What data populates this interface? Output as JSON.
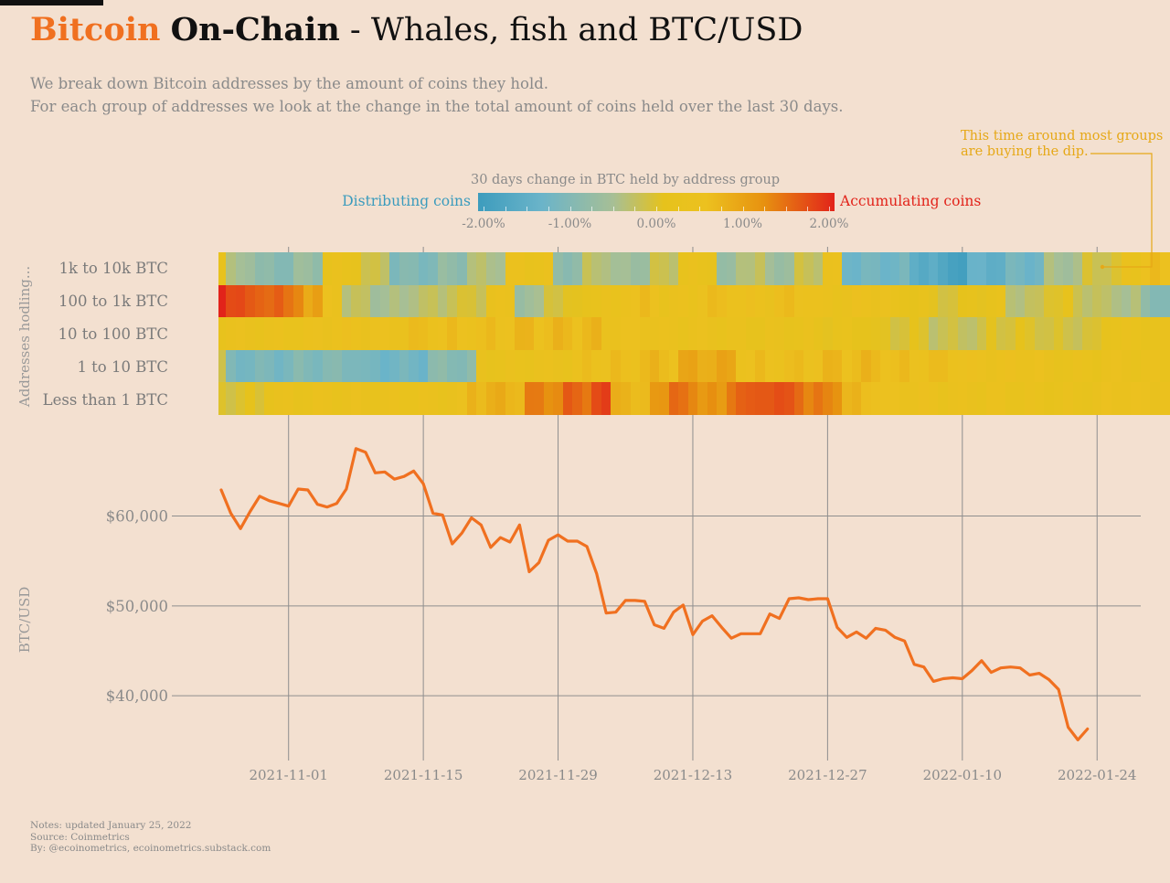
{
  "header": {
    "title_part1": "Bitcoin",
    "title_part2": "On-Chain",
    "title_part3": "- Whales, fish and BTC/USD",
    "subtitle_line1": "We break down Bitcoin addresses by the amount of coins they hold.",
    "subtitle_line2": "For each group of addresses we look at the change in the total amount of coins held over the last 30 days."
  },
  "annotation": {
    "line1": "This time around most groups",
    "line2": "are buying the dip."
  },
  "legend": {
    "title": "30 days change in BTC held by address group",
    "left_label": "Distributing coins",
    "right_label": "Accumulating coins",
    "ticks": [
      "-2.00%",
      "-1.00%",
      "0.00%",
      "1.00%",
      "2.00%"
    ]
  },
  "colors": {
    "accent": "#f07020",
    "distribute": "#3a9bbd",
    "accumulate": "#e2231a",
    "annotation": "#e6a817",
    "background": "#f3e0d0"
  },
  "chart_data": [
    {
      "type": "heatmap",
      "ylabel": "Addresses hodling...",
      "rows": [
        "1k to 10k BTC",
        "100 to 1k BTC",
        "10 to 100 BTC",
        "1 to 10 BTC",
        "Less than 1 BTC"
      ],
      "x_start": "2021-10-25",
      "x_end": "2022-01-24",
      "value_unit": "% change",
      "color_range": [
        -2.0,
        2.0
      ],
      "segments": [
        [
          [
            0,
            1,
            0.3
          ],
          [
            1,
            4,
            -0.5
          ],
          [
            4,
            8,
            -0.9
          ],
          [
            8,
            11,
            -0.7
          ],
          [
            11,
            15,
            0.3
          ],
          [
            15,
            18,
            -0.2
          ],
          [
            18,
            23,
            -1.0
          ],
          [
            23,
            26,
            -0.8
          ],
          [
            26,
            30,
            -0.4
          ],
          [
            30,
            35,
            0.4
          ],
          [
            35,
            38,
            -0.8
          ],
          [
            38,
            41,
            -0.3
          ],
          [
            41,
            45,
            -0.6
          ],
          [
            45,
            48,
            -0.2
          ],
          [
            48,
            52,
            0.3
          ],
          [
            52,
            54,
            -0.8
          ],
          [
            54,
            57,
            -0.3
          ],
          [
            57,
            60,
            -0.6
          ],
          [
            60,
            63,
            -0.2
          ],
          [
            63,
            65,
            0.4
          ],
          [
            65,
            72,
            -1.2
          ],
          [
            72,
            75,
            -1.5
          ],
          [
            75,
            78,
            -1.8
          ],
          [
            78,
            82,
            -1.4
          ],
          [
            82,
            86,
            -1.2
          ],
          [
            86,
            90,
            -0.5
          ],
          [
            90,
            94,
            -0.1
          ],
          [
            94,
            96,
            0.4
          ],
          [
            96,
            99,
            0.6
          ]
        ],
        [
          [
            0,
            1,
            2.0
          ],
          [
            1,
            3,
            1.8
          ],
          [
            3,
            5,
            1.5
          ],
          [
            5,
            7,
            1.6
          ],
          [
            7,
            9,
            1.3
          ],
          [
            9,
            11,
            1.0
          ],
          [
            11,
            13,
            0.5
          ],
          [
            13,
            16,
            -0.3
          ],
          [
            16,
            20,
            -0.5
          ],
          [
            20,
            24,
            -0.3
          ],
          [
            24,
            28,
            -0.1
          ],
          [
            28,
            31,
            0.4
          ],
          [
            31,
            34,
            -0.6
          ],
          [
            34,
            38,
            0.0
          ],
          [
            38,
            42,
            0.3
          ],
          [
            42,
            46,
            0.6
          ],
          [
            46,
            50,
            0.4
          ],
          [
            50,
            54,
            0.6
          ],
          [
            54,
            58,
            0.5
          ],
          [
            58,
            62,
            0.6
          ],
          [
            62,
            66,
            0.4
          ],
          [
            66,
            70,
            0.5
          ],
          [
            70,
            74,
            0.2
          ],
          [
            74,
            78,
            0.0
          ],
          [
            78,
            82,
            0.2
          ],
          [
            82,
            86,
            -0.3
          ],
          [
            86,
            89,
            0.1
          ],
          [
            89,
            92,
            -0.2
          ],
          [
            92,
            96,
            -0.4
          ],
          [
            96,
            99,
            -0.9
          ]
        ],
        [
          [
            0,
            10,
            0.4
          ],
          [
            10,
            20,
            0.5
          ],
          [
            20,
            30,
            0.6
          ],
          [
            30,
            40,
            0.7
          ],
          [
            40,
            46,
            0.5
          ],
          [
            46,
            54,
            0.4
          ],
          [
            54,
            62,
            0.3
          ],
          [
            62,
            68,
            0.2
          ],
          [
            68,
            74,
            0.0
          ],
          [
            74,
            80,
            -0.2
          ],
          [
            80,
            86,
            0.0
          ],
          [
            86,
            92,
            -0.1
          ],
          [
            92,
            99,
            0.3
          ]
        ],
        [
          [
            0,
            1,
            -0.2
          ],
          [
            1,
            8,
            -1.1
          ],
          [
            8,
            15,
            -1.0
          ],
          [
            15,
            22,
            -1.2
          ],
          [
            22,
            27,
            -0.9
          ],
          [
            27,
            32,
            0.3
          ],
          [
            32,
            38,
            0.4
          ],
          [
            38,
            44,
            0.6
          ],
          [
            44,
            48,
            0.7
          ],
          [
            48,
            54,
            0.9
          ],
          [
            54,
            62,
            0.6
          ],
          [
            62,
            70,
            0.7
          ],
          [
            70,
            78,
            0.6
          ],
          [
            78,
            86,
            0.5
          ],
          [
            86,
            92,
            0.3
          ],
          [
            92,
            99,
            0.4
          ]
        ],
        [
          [
            0,
            5,
            0.0
          ],
          [
            5,
            10,
            0.3
          ],
          [
            10,
            18,
            0.4
          ],
          [
            18,
            26,
            0.4
          ],
          [
            26,
            32,
            0.8
          ],
          [
            32,
            36,
            1.3
          ],
          [
            36,
            39,
            1.5
          ],
          [
            39,
            41,
            1.7
          ],
          [
            41,
            43,
            0.9
          ],
          [
            43,
            45,
            0.6
          ],
          [
            45,
            47,
            1.2
          ],
          [
            47,
            50,
            1.4
          ],
          [
            50,
            53,
            1.1
          ],
          [
            53,
            56,
            1.5
          ],
          [
            56,
            58,
            1.7
          ],
          [
            58,
            61,
            1.6
          ],
          [
            61,
            65,
            1.3
          ],
          [
            65,
            69,
            0.7
          ],
          [
            69,
            75,
            0.5
          ],
          [
            75,
            83,
            0.4
          ],
          [
            83,
            92,
            0.3
          ],
          [
            92,
            99,
            0.5
          ]
        ]
      ]
    },
    {
      "type": "line",
      "ylabel": "BTC/USD",
      "yticks": [
        "$40,000",
        "$50,000",
        "$60,000"
      ],
      "ylim": [
        33000,
        69000
      ],
      "xticks": [
        "2021-11-01",
        "2021-11-15",
        "2021-11-29",
        "2021-12-13",
        "2021-12-27",
        "2022-01-10",
        "2022-01-24"
      ],
      "x_start": "2021-10-25",
      "series": [
        {
          "values": [
            62900,
            60300,
            58600,
            60500,
            62200,
            61700,
            61400,
            61100,
            63000,
            62900,
            61300,
            61000,
            61400,
            63000,
            67500,
            67100,
            64800,
            64900,
            64100,
            64400,
            65000,
            63600,
            60300,
            60100,
            56900,
            58100,
            59800,
            59000,
            56500,
            57600,
            57100,
            59000,
            53800,
            54800,
            57300,
            57900,
            57200,
            57200,
            56600,
            53600,
            49200,
            49300,
            50600,
            50600,
            50500,
            47900,
            47500,
            49300,
            50100,
            46800,
            48300,
            48900,
            47600,
            46400,
            46900,
            46900,
            46900,
            49100,
            48600,
            50800,
            50900,
            50700,
            50800,
            50800,
            47600,
            46500,
            47100,
            46400,
            47500,
            47300,
            46500,
            46100,
            43500,
            43200,
            41600,
            41900,
            42000,
            41900,
            42800,
            43900,
            42600,
            43100,
            43200,
            43100,
            42300,
            42500,
            41800,
            40700,
            36500,
            35100,
            36300
          ]
        }
      ]
    }
  ],
  "notes": {
    "line1": "Notes: updated January 25, 2022",
    "line2": "Source: Coinmetrics",
    "line3": "By: @ecoinometrics, ecoinometrics.substack.com"
  }
}
